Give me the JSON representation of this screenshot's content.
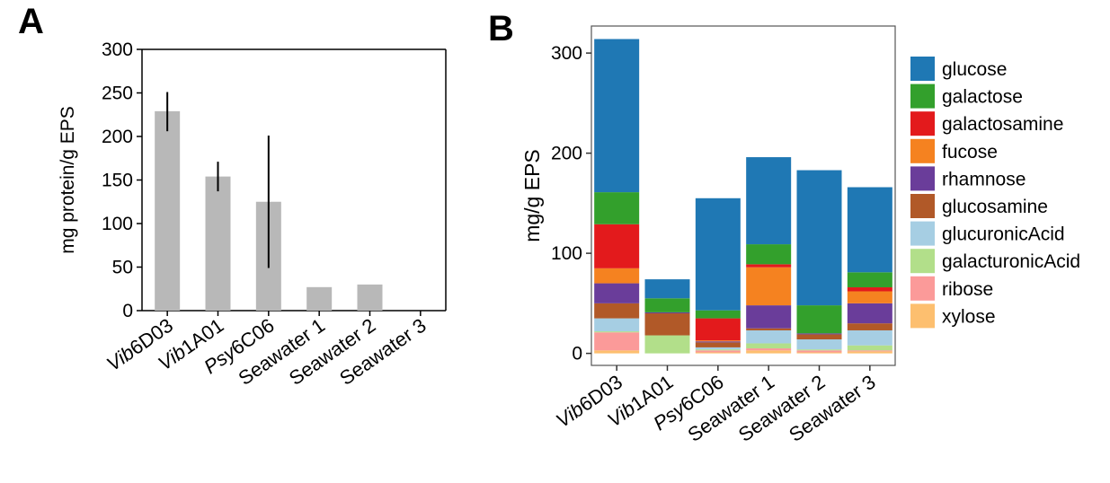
{
  "panels": {
    "a_label": "A",
    "b_label": "B"
  },
  "chart_data": [
    {
      "type": "bar",
      "panel": "A",
      "categories": [
        {
          "prefix": "Vib",
          "rest": "6D03",
          "italic_prefix": true
        },
        {
          "prefix": "Vib",
          "rest": "1A01",
          "italic_prefix": true
        },
        {
          "prefix": "Psy",
          "rest": "6C06",
          "italic_prefix": true
        },
        {
          "prefix": "",
          "rest": "Seawater 1",
          "italic_prefix": false
        },
        {
          "prefix": "",
          "rest": "Seawater 2",
          "italic_prefix": false
        },
        {
          "prefix": "",
          "rest": "Seawater 3",
          "italic_prefix": false
        }
      ],
      "values": [
        229,
        154,
        125,
        27,
        30,
        0
      ],
      "errors": [
        [
          206,
          251
        ],
        [
          137,
          171
        ],
        [
          49,
          201
        ],
        null,
        null,
        null
      ],
      "ylabel": "mg protein/g EPS",
      "ylim": [
        0,
        300
      ],
      "yticks": [
        0,
        50,
        100,
        150,
        200,
        250,
        300
      ],
      "bar_color": "#b8b8b8",
      "grid": false
    },
    {
      "type": "stacked-bar",
      "panel": "B",
      "categories": [
        {
          "prefix": "Vib",
          "rest": "6D03",
          "italic_prefix": true
        },
        {
          "prefix": "Vib",
          "rest": "1A01",
          "italic_prefix": true
        },
        {
          "prefix": "Psy",
          "rest": "6C06",
          "italic_prefix": true
        },
        {
          "prefix": "",
          "rest": "Seawater 1",
          "italic_prefix": false
        },
        {
          "prefix": "",
          "rest": "Seawater 2",
          "italic_prefix": false
        },
        {
          "prefix": "",
          "rest": "Seawater 3",
          "italic_prefix": false
        }
      ],
      "ylabel": "mg/g EPS",
      "ylim": [
        -12,
        327
      ],
      "yticks": [
        0,
        100,
        200,
        300
      ],
      "legend_position": "right",
      "grid": false,
      "series": [
        {
          "name": "xylose",
          "color": "#fdbf6f",
          "values": [
            3,
            0,
            1,
            3,
            1,
            2
          ]
        },
        {
          "name": "ribose",
          "color": "#fb9a99",
          "values": [
            18,
            0,
            2,
            2,
            2,
            1
          ]
        },
        {
          "name": "galacturonicAcid",
          "color": "#b2df8a",
          "values": [
            1,
            18,
            1,
            5,
            1,
            5
          ]
        },
        {
          "name": "glucuronicAcid",
          "color": "#a6cee3",
          "values": [
            13,
            0,
            2,
            13,
            10,
            15
          ]
        },
        {
          "name": "glucosamine",
          "color": "#b15928",
          "values": [
            15,
            22,
            5,
            2,
            5,
            7
          ]
        },
        {
          "name": "rhamnose",
          "color": "#6a3d9a",
          "values": [
            20,
            1,
            1,
            23,
            1,
            20
          ]
        },
        {
          "name": "fucose",
          "color": "#f58220",
          "values": [
            15,
            0,
            1,
            38,
            0,
            12
          ]
        },
        {
          "name": "galactosamine",
          "color": "#e31a1c",
          "values": [
            44,
            0,
            22,
            3,
            0,
            4
          ]
        },
        {
          "name": "galactose",
          "color": "#33a02c",
          "values": [
            32,
            14,
            8,
            20,
            28,
            15
          ]
        },
        {
          "name": "glucose",
          "color": "#1f78b4",
          "values": [
            153,
            19,
            112,
            87,
            135,
            85
          ]
        }
      ],
      "legend_order": [
        "glucose",
        "galactose",
        "galactosamine",
        "fucose",
        "rhamnose",
        "glucosamine",
        "glucuronicAcid",
        "galacturonicAcid",
        "ribose",
        "xylose"
      ]
    }
  ]
}
